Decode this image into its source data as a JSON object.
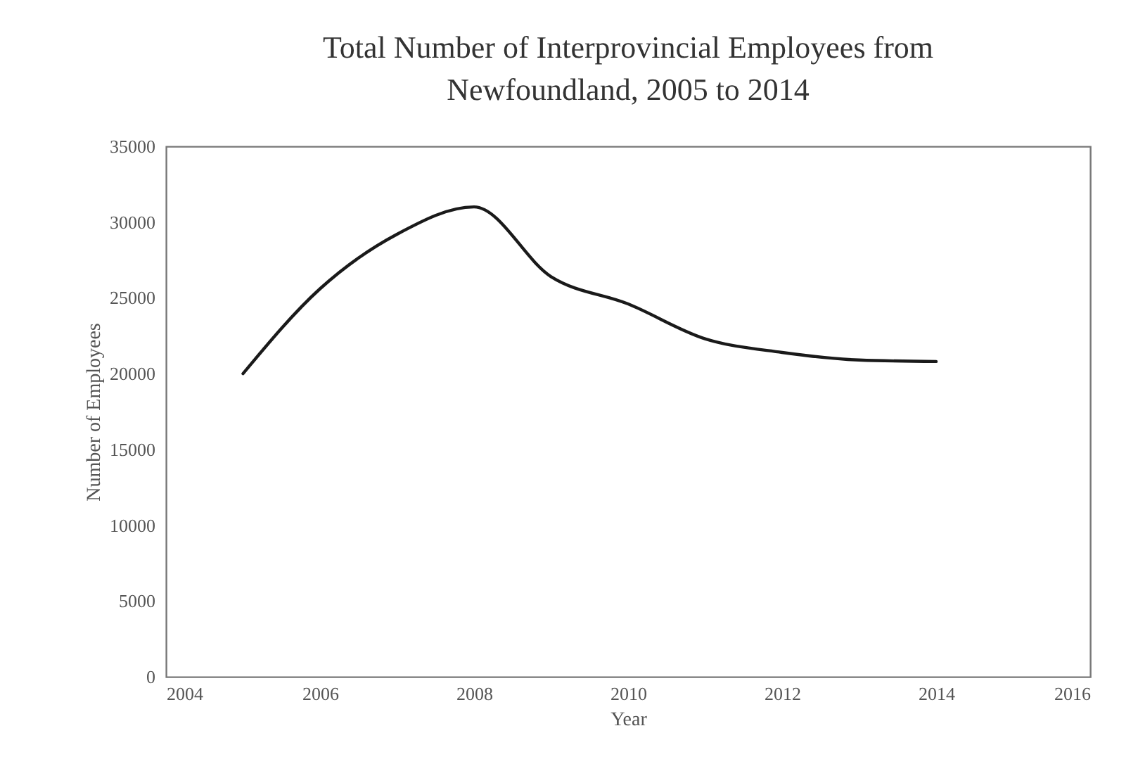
{
  "chart_data": {
    "type": "line",
    "title": "Total Number of Interprovincial Employees from Newfoundland, 2005 to 2014",
    "xlabel": "Year",
    "ylabel": "Number of Employees",
    "x": [
      2005,
      2006,
      2007,
      2008,
      2009,
      2010,
      2011,
      2012,
      2013,
      2014
    ],
    "series": [
      {
        "color": "#1a1a1a",
        "values": [
          20000,
          25600,
          29200,
          31000,
          26400,
          24600,
          22300,
          21400,
          20900,
          20800
        ]
      }
    ],
    "xlim": [
      2004,
      2016
    ],
    "xticks": [
      2004,
      2006,
      2008,
      2010,
      2012,
      2014,
      2016
    ],
    "ylim": [
      0,
      35000
    ],
    "yticks": [
      0,
      5000,
      10000,
      15000,
      20000,
      25000,
      30000,
      35000
    ],
    "grid": false,
    "marker": "none",
    "line_style": "solid"
  }
}
